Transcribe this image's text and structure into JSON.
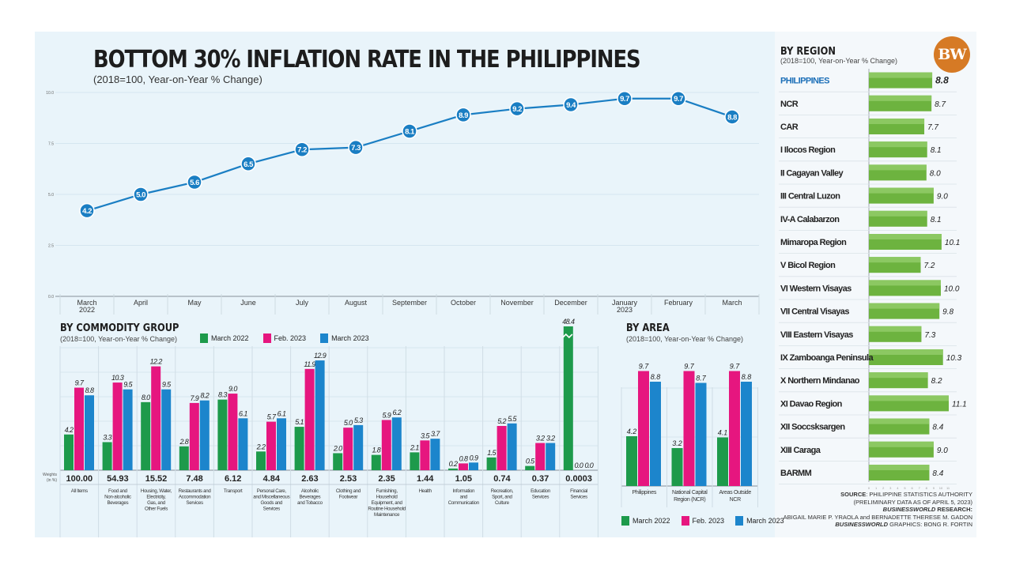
{
  "header": {
    "title": "BOTTOM 30% INFLATION RATE IN THE PHILIPPINES",
    "subtitle": "(2018=100, Year-on-Year % Change)"
  },
  "logo": {
    "text": "BW",
    "color": "#d67a25"
  },
  "colors": {
    "line": "#1a7ec3",
    "march2022": "#1d9a4b",
    "feb2023": "#e6167f",
    "march2023": "#1c85cc",
    "region_bar": "#6db33f",
    "region_highlight": "#1c6fb8"
  },
  "commodity": {
    "title": "BY COMMODITY GROUP",
    "subtitle": "(2018=100, Year-on-Year % Change)",
    "weights_label": "Weights (in %)"
  },
  "area": {
    "title": "BY AREA",
    "subtitle": "(2018=100, Year-on-Year % Change)"
  },
  "region": {
    "title": "BY REGION",
    "subtitle": "(2018=100, Year-on-Year % Change)"
  },
  "legend": [
    "March 2022",
    "Feb. 2023",
    "March 2023"
  ],
  "source": {
    "line1_bold": "SOURCE",
    "line1": ": PHILIPPINE STATISTICS AUTHORITY",
    "line2": "(PRELIMINARY DATA AS OF APRIL 5, 2023)",
    "line3_bold": "BUSINESSWORLD",
    "line3": " RESEARCH:",
    "line4": "ABIGAIL MARIE P. YRAOLA and BERNADETTE THERESE M. GADON",
    "line5_bold": "BUSINESSWORLD",
    "line5": " GRAPHICS: BONG R. FORTIN"
  },
  "chart_data": [
    {
      "type": "line",
      "title": "BOTTOM 30% INFLATION RATE IN THE PHILIPPINES",
      "subtitle": "(2018=100, Year-on-Year % Change)",
      "x": [
        "March 2022",
        "April",
        "May",
        "June",
        "July",
        "August",
        "September",
        "October",
        "November",
        "December",
        "January 2023",
        "February",
        "March"
      ],
      "x_lines": [
        [
          "March",
          "2022"
        ],
        [
          "April"
        ],
        [
          "May"
        ],
        [
          "June"
        ],
        [
          "July"
        ],
        [
          "August"
        ],
        [
          "September"
        ],
        [
          "October"
        ],
        [
          "November"
        ],
        [
          "December"
        ],
        [
          "January",
          "2023"
        ],
        [
          "February"
        ],
        [
          "March"
        ]
      ],
      "values": [
        4.2,
        5.0,
        5.6,
        6.5,
        7.2,
        7.3,
        8.1,
        8.9,
        9.2,
        9.4,
        9.7,
        9.7,
        8.8
      ],
      "labels": [
        "4.2",
        "5.0",
        "5.6",
        "6.5",
        "7.2",
        "7.3",
        "8.1",
        "8.9",
        "9.2",
        "9.4",
        "9.7",
        "9.7",
        "8.8"
      ],
      "ylim": [
        0,
        10
      ],
      "yticks": [
        "0.0",
        "2.5",
        "5.0",
        "7.5",
        "10.0"
      ],
      "ytick_values": [
        0,
        2.5,
        5,
        7.5,
        10
      ],
      "grid": true
    },
    {
      "type": "bar",
      "title": "BY COMMODITY GROUP",
      "subtitle": "(2018=100, Year-on-Year % Change)",
      "categories": [
        [
          "All Items"
        ],
        [
          "Food and",
          "Non-alcoholic",
          "Beverages"
        ],
        [
          "Housing, Water,",
          "Electricity,",
          "Gas, and",
          "Other Fuels"
        ],
        [
          "Restaurants and",
          "Accommodation",
          "Services"
        ],
        [
          "Transport"
        ],
        [
          "Personal Care,",
          "and Miscellaneous",
          "Goods and",
          "Services"
        ],
        [
          "Alcoholic",
          "Beverages",
          "and Tobacco"
        ],
        [
          "Clothing and",
          "Footwear"
        ],
        [
          "Furnishing,",
          "Household",
          "Equipment, and",
          "Routine Household",
          "Maintenance"
        ],
        [
          "Health"
        ],
        [
          "Information",
          "and",
          "Communication"
        ],
        [
          "Recreation,",
          "Sport, and",
          "Culture"
        ],
        [
          "Education",
          "Services"
        ],
        [
          "Financial",
          "Services"
        ]
      ],
      "weights": [
        "100.00",
        "54.93",
        "15.52",
        "7.48",
        "6.12",
        "4.84",
        "2.63",
        "2.53",
        "2.35",
        "1.44",
        "1.05",
        "0.74",
        "0.37",
        "0.0003"
      ],
      "series": [
        {
          "name": "March 2022",
          "values": [
            4.2,
            3.3,
            8.0,
            2.8,
            8.3,
            2.2,
            5.1,
            2.0,
            1.8,
            2.1,
            0.2,
            1.5,
            0.5,
            48.4
          ]
        },
        {
          "name": "Feb. 2023",
          "values": [
            9.7,
            10.3,
            12.2,
            7.9,
            9.0,
            5.7,
            11.9,
            5.0,
            5.9,
            3.5,
            0.8,
            5.2,
            3.2,
            0.0
          ]
        },
        {
          "name": "March 2023",
          "values": [
            8.8,
            9.5,
            9.5,
            8.2,
            6.1,
            6.1,
            12.9,
            5.3,
            6.2,
            3.7,
            0.9,
            5.5,
            3.2,
            0.0
          ]
        }
      ],
      "ylim": [
        0,
        13
      ],
      "broken_axis_note": "Financial Services March 2022 bar (48.4) is truncated with a break mark",
      "legend": "top"
    },
    {
      "type": "bar",
      "title": "BY AREA",
      "subtitle": "(2018=100, Year-on-Year % Change)",
      "categories": [
        [
          "Philippines"
        ],
        [
          "National Capital",
          "Region (NCR)"
        ],
        [
          "Areas Outside",
          "NCR"
        ]
      ],
      "series": [
        {
          "name": "March 2022",
          "values": [
            4.2,
            3.2,
            4.1
          ]
        },
        {
          "name": "Feb. 2023",
          "values": [
            9.7,
            9.7,
            9.7
          ]
        },
        {
          "name": "March 2023",
          "values": [
            8.8,
            8.7,
            8.8
          ]
        }
      ],
      "ylim": [
        0,
        12
      ],
      "legend": "bottom"
    },
    {
      "type": "bar",
      "orientation": "horizontal",
      "title": "BY REGION",
      "subtitle": "(2018=100, Year-on-Year % Change)",
      "categories": [
        "PHILIPPINES",
        "NCR",
        "CAR",
        "I Ilocos Region",
        "II Cagayan Valley",
        "III Central Luzon",
        "IV-A Calabarzon",
        "Mimaropa Region",
        "V Bicol Region",
        "VI Western Visayas",
        "VII Central Visayas",
        "VIII Eastern Visayas",
        "IX Zamboanga Peninsula",
        "X Northern Mindanao",
        "XI Davao Region",
        "XII Soccsksargen",
        "XIII Caraga",
        "BARMM"
      ],
      "values": [
        8.8,
        8.7,
        7.7,
        8.1,
        8.0,
        9.0,
        8.1,
        10.1,
        7.2,
        10.0,
        9.8,
        7.3,
        10.3,
        8.2,
        11.1,
        8.4,
        9.0,
        8.4
      ],
      "labels": [
        "8.8",
        "8.7",
        "7.7",
        "8.1",
        "8.0",
        "9.0",
        "8.1",
        "10.1",
        "7.2",
        "10.0",
        "9.8",
        "7.3",
        "10.3",
        "8.2",
        "11.1",
        "8.4",
        "9.0",
        "8.4"
      ],
      "xlim": [
        0,
        11.5
      ]
    }
  ]
}
